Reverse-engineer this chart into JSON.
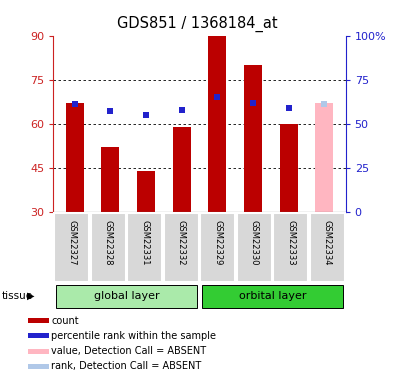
{
  "title": "GDS851 / 1368184_at",
  "samples": [
    "GSM22327",
    "GSM22328",
    "GSM22331",
    "GSM22332",
    "GSM22329",
    "GSM22330",
    "GSM22333",
    "GSM22334"
  ],
  "bar_values": [
    67,
    52,
    44,
    59,
    90,
    80,
    60,
    67
  ],
  "bar_colors": [
    "#bb0000",
    "#bb0000",
    "#bb0000",
    "#bb0000",
    "#bb0000",
    "#bb0000",
    "#bb0000",
    "#ffb6c1"
  ],
  "rank_values": [
    61,
    57,
    55,
    58,
    65,
    62,
    59,
    61
  ],
  "rank_colors": [
    "#2222cc",
    "#2222cc",
    "#2222cc",
    "#2222cc",
    "#2222cc",
    "#2222cc",
    "#2222cc",
    "#b0c8e8"
  ],
  "absent_mask": [
    false,
    false,
    false,
    false,
    false,
    false,
    false,
    true
  ],
  "ylim_left": [
    30,
    90
  ],
  "ylim_right": [
    0,
    100
  ],
  "yticks_left": [
    30,
    45,
    60,
    75,
    90
  ],
  "yticks_right": [
    0,
    25,
    50,
    75,
    100
  ],
  "left_tick_color": "#cc2222",
  "right_tick_color": "#2222cc",
  "global_color": "#aaeaaa",
  "orbital_color": "#33cc33",
  "legend_items": [
    {
      "color": "#bb0000",
      "label": "count"
    },
    {
      "color": "#2222cc",
      "label": "percentile rank within the sample"
    },
    {
      "color": "#ffb6c1",
      "label": "value, Detection Call = ABSENT"
    },
    {
      "color": "#b0c8e8",
      "label": "rank, Detection Call = ABSENT"
    }
  ],
  "bar_width": 0.5,
  "n_groups": 2,
  "group_split": 4
}
